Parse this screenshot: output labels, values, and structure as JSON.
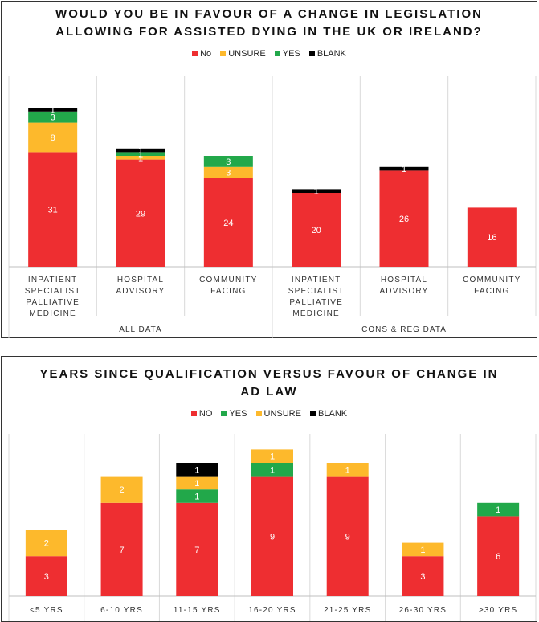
{
  "colors": {
    "no": "#EE2E31",
    "unsure": "#FDB92C",
    "yes": "#22A84A",
    "blank": "#000000"
  },
  "chart_data": [
    {
      "type": "bar",
      "stacked": true,
      "title_line1": "WOULD YOU BE IN FAVOUR OF A CHANGE IN LEGISLATION",
      "title_line2": "ALLOWING FOR ASSISTED DYING IN THE UK OR IRELAND?",
      "legend": [
        {
          "label": "No",
          "color_key": "no"
        },
        {
          "label": "UNSURE",
          "color_key": "unsure"
        },
        {
          "label": "YES",
          "color_key": "yes"
        },
        {
          "label": "BLANK",
          "color_key": "blank"
        }
      ],
      "categories": [
        [
          "INPATIENT",
          "SPECIALIST",
          "PALLIATIVE",
          "MEDICINE"
        ],
        [
          "HOSPITAL",
          "ADVISORY"
        ],
        [
          "COMMUNITY",
          "FACING"
        ],
        [
          "INPATIENT",
          "SPECIALIST",
          "PALLIATIVE",
          "MEDICINE"
        ],
        [
          "HOSPITAL",
          "ADVISORY"
        ],
        [
          "COMMUNITY",
          "FACING"
        ]
      ],
      "groups": [
        {
          "label": "ALL DATA",
          "span": 3
        },
        {
          "label": "CONS & REG DATA",
          "span": 3
        }
      ],
      "series": [
        {
          "name": "No",
          "color_key": "no",
          "values": [
            31,
            29,
            24,
            20,
            26,
            16
          ],
          "labels": [
            "31",
            "29",
            "24",
            "20",
            "26",
            "16"
          ]
        },
        {
          "name": "UNSURE",
          "color_key": "unsure",
          "values": [
            8,
            1,
            3,
            0,
            0,
            0
          ],
          "labels": [
            "8",
            "1",
            "3",
            "",
            "",
            ""
          ]
        },
        {
          "name": "YES",
          "color_key": "yes",
          "values": [
            3,
            1,
            3,
            0,
            0,
            0
          ],
          "labels": [
            "3",
            "1",
            "3",
            "",
            "",
            ""
          ]
        },
        {
          "name": "BLANK",
          "color_key": "blank",
          "values": [
            1,
            1,
            0,
            1,
            1,
            0
          ],
          "labels": [
            "1",
            "1",
            "",
            "1",
            "1",
            ""
          ]
        }
      ],
      "ylim": [
        0,
        45
      ]
    },
    {
      "type": "bar",
      "stacked": true,
      "title_line1": "YEARS SINCE QUALIFICATION VERSUS FAVOUR OF CHANGE IN",
      "title_line2": "AD LAW",
      "legend": [
        {
          "label": "NO",
          "color_key": "no"
        },
        {
          "label": "YES",
          "color_key": "yes"
        },
        {
          "label": "UNSURE",
          "color_key": "unsure"
        },
        {
          "label": "BLANK",
          "color_key": "blank"
        }
      ],
      "categories": [
        [
          "<5 YRS"
        ],
        [
          "6-10 YRS"
        ],
        [
          "11-15 YRS"
        ],
        [
          "16-20 YRS"
        ],
        [
          "21-25 YRS"
        ],
        [
          "26-30 YRS"
        ],
        [
          ">30 YRS"
        ]
      ],
      "series": [
        {
          "name": "NO",
          "color_key": "no",
          "values": [
            3,
            7,
            7,
            9,
            9,
            3,
            6
          ],
          "labels": [
            "3",
            "7",
            "7",
            "9",
            "9",
            "3",
            "6"
          ]
        },
        {
          "name": "YES",
          "color_key": "yes",
          "values": [
            0,
            0,
            1,
            1,
            0,
            0,
            1
          ],
          "labels": [
            "",
            "",
            "1",
            "1",
            "",
            "",
            "1"
          ]
        },
        {
          "name": "UNSURE",
          "color_key": "unsure",
          "values": [
            2,
            2,
            1,
            1,
            1,
            1,
            0
          ],
          "labels": [
            "2",
            "2",
            "1",
            "1",
            "1",
            "1",
            ""
          ]
        },
        {
          "name": "BLANK",
          "color_key": "blank",
          "values": [
            0,
            0,
            1,
            0,
            0,
            0,
            0
          ],
          "labels": [
            "",
            "",
            "1",
            "",
            "",
            "",
            ""
          ]
        }
      ],
      "ylim": [
        0,
        12
      ]
    }
  ]
}
